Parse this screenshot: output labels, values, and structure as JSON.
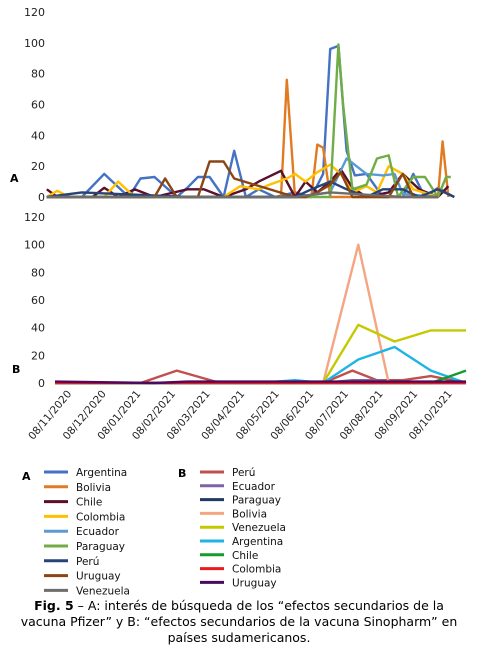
{
  "panels": {
    "a": "A",
    "b": "B"
  },
  "caption": {
    "label": "Fig. 5",
    "text": " – A: interés de búsqueda de los “efectos secundarios de la vacuna Pfizer” y B: “efectos secundarios de la vacuna Sinopharm” en países sudamericanos."
  },
  "chart_data": [
    {
      "type": "line",
      "panel": "A",
      "ylim": [
        0,
        120
      ],
      "yticks": [
        0,
        20,
        40,
        60,
        80,
        100,
        120
      ],
      "x_range": [
        "08/11/2020",
        "08/10/2021"
      ],
      "xlabel": "",
      "ylabel": "",
      "title": "",
      "series": [
        {
          "name": "Argentina",
          "color": "#4472c4",
          "x": [
            "2020-11-01",
            "2020-12-01",
            "2020-12-20",
            "2021-01-10",
            "2021-01-20",
            "2021-02-01",
            "2021-02-20",
            "2021-03-01",
            "2021-03-10",
            "2021-03-20",
            "2021-04-01",
            "2021-04-10",
            "2021-04-20",
            "2021-05-01",
            "2021-05-15",
            "2021-06-01",
            "2021-06-15",
            "2021-06-25",
            "2021-07-01",
            "2021-07-08",
            "2021-07-15",
            "2021-07-22",
            "2021-08-01",
            "2021-08-15",
            "2021-09-01",
            "2021-09-10",
            "2021-09-20",
            "2021-10-01",
            "2021-10-15"
          ],
          "values": [
            0,
            0,
            15,
            0,
            12,
            13,
            0,
            6,
            13,
            13,
            0,
            30,
            0,
            5,
            0,
            3,
            0,
            15,
            96,
            98,
            30,
            14,
            15,
            0,
            0,
            15,
            0,
            6,
            0
          ]
        },
        {
          "name": "Bolivia",
          "color": "#e07b22",
          "x": [
            "2020-11-01",
            "2021-05-20",
            "2021-05-25",
            "2021-06-01",
            "2021-06-10",
            "2021-06-15",
            "2021-06-20",
            "2021-06-25",
            "2021-07-01",
            "2021-10-01",
            "2021-10-05",
            "2021-10-10"
          ],
          "values": [
            0,
            0,
            76,
            0,
            0,
            0,
            34,
            32,
            0,
            0,
            36,
            0
          ]
        },
        {
          "name": "Chile",
          "color": "#5a0f2b",
          "x": [
            "2020-11-01",
            "2020-11-10",
            "2020-12-10",
            "2020-12-20",
            "2021-01-01",
            "2021-01-15",
            "2021-02-01",
            "2021-03-01",
            "2021-03-15",
            "2021-04-01",
            "2021-04-20",
            "2021-05-01",
            "2021-05-20",
            "2021-06-01",
            "2021-06-10",
            "2021-06-20",
            "2021-07-01",
            "2021-07-10",
            "2021-07-20",
            "2021-08-01",
            "2021-08-20",
            "2021-09-01",
            "2021-09-15",
            "2021-10-01",
            "2021-10-10"
          ],
          "values": [
            5,
            0,
            0,
            6,
            0,
            5,
            0,
            5,
            5,
            0,
            5,
            10,
            17,
            0,
            10,
            3,
            10,
            18,
            6,
            0,
            3,
            15,
            5,
            0,
            7
          ]
        },
        {
          "name": "Colombia",
          "color": "#ffc000",
          "x": [
            "2020-11-01",
            "2020-11-10",
            "2020-11-20",
            "2020-12-20",
            "2021-01-01",
            "2021-01-15",
            "2021-02-01",
            "2021-03-01",
            "2021-04-01",
            "2021-04-15",
            "2021-05-01",
            "2021-05-10",
            "2021-05-25",
            "2021-06-01",
            "2021-06-10",
            "2021-06-20",
            "2021-07-01",
            "2021-07-10",
            "2021-07-20",
            "2021-08-01",
            "2021-08-10",
            "2021-08-20",
            "2021-09-01",
            "2021-09-10",
            "2021-10-01"
          ],
          "values": [
            0,
            4,
            0,
            0,
            10,
            0,
            0,
            0,
            0,
            7,
            5,
            8,
            12,
            15,
            10,
            16,
            21,
            15,
            3,
            7,
            3,
            20,
            15,
            5,
            0
          ]
        },
        {
          "name": "Ecuador",
          "color": "#5b9bd5",
          "x": [
            "2020-11-01",
            "2021-03-01",
            "2021-03-10",
            "2021-06-01",
            "2021-07-01",
            "2021-07-15",
            "2021-08-01",
            "2021-08-15",
            "2021-08-25",
            "2021-09-01",
            "2021-10-01"
          ],
          "values": [
            0,
            0,
            0,
            0,
            3,
            25,
            15,
            14,
            15,
            2,
            0
          ]
        },
        {
          "name": "Paraguay",
          "color": "#70ad47",
          "x": [
            "2020-11-01",
            "2021-06-20",
            "2021-07-01",
            "2021-07-08",
            "2021-07-12",
            "2021-07-20",
            "2021-08-01",
            "2021-08-10",
            "2021-08-20",
            "2021-08-28",
            "2021-09-10",
            "2021-09-20",
            "2021-10-01",
            "2021-10-08",
            "2021-10-12"
          ],
          "values": [
            0,
            0,
            0,
            99,
            60,
            5,
            8,
            25,
            27,
            0,
            13,
            13,
            0,
            13,
            13
          ]
        },
        {
          "name": "Perú",
          "color": "#264478",
          "x": [
            "2020-11-01",
            "2020-12-01",
            "2021-03-01",
            "2021-06-01",
            "2021-06-15",
            "2021-07-01",
            "2021-07-15",
            "2021-08-01",
            "2021-08-15",
            "2021-09-01",
            "2021-09-15",
            "2021-10-01",
            "2021-10-15"
          ],
          "values": [
            0,
            3,
            0,
            0,
            5,
            10,
            5,
            0,
            5,
            5,
            0,
            5,
            0
          ]
        },
        {
          "name": "Uruguay",
          "color": "#8b4513",
          "x": [
            "2020-11-01",
            "2021-02-01",
            "2021-02-10",
            "2021-02-20",
            "2021-03-10",
            "2021-03-20",
            "2021-04-01",
            "2021-04-10",
            "2021-06-01",
            "2021-06-10",
            "2021-06-20",
            "2021-07-01",
            "2021-07-10",
            "2021-07-20",
            "2021-08-10",
            "2021-08-20",
            "2021-09-01",
            "2021-09-10",
            "2021-10-01"
          ],
          "values": [
            0,
            0,
            12,
            0,
            0,
            23,
            23,
            12,
            0,
            0,
            3,
            8,
            16,
            0,
            0,
            0,
            15,
            0,
            0
          ]
        },
        {
          "name": "Venezuela",
          "color": "#6d6d6d",
          "x": [
            "2020-11-01",
            "2020-12-01",
            "2021-03-01",
            "2021-06-01",
            "2021-07-01",
            "2021-09-01",
            "2021-10-01"
          ],
          "values": [
            0,
            0,
            0,
            0,
            3,
            0,
            0
          ]
        }
      ]
    },
    {
      "type": "line",
      "panel": "B",
      "ylim": [
        0,
        120
      ],
      "yticks": [
        0,
        20,
        40,
        60,
        80,
        100,
        120
      ],
      "categories": [
        "08/11/2020",
        "08/12/2020",
        "08/01/2021",
        "08/02/2021",
        "08/03/2021",
        "08/04/2021",
        "08/05/2021",
        "08/06/2021",
        "08/07/2021",
        "08/08/2021",
        "08/09/2021",
        "08/10/2021"
      ],
      "x_range": [
        "2020-11-08",
        "2021-10-25"
      ],
      "xlabel": "",
      "ylabel": "",
      "title": "",
      "series": [
        {
          "name": "Perú",
          "color": "#c0504d",
          "x": [
            "2020-11-08",
            "2021-01-20",
            "2021-02-20",
            "2021-03-25",
            "2021-05-01",
            "2021-06-01",
            "2021-06-25",
            "2021-07-20",
            "2021-08-10",
            "2021-09-01",
            "2021-09-25",
            "2021-10-25"
          ],
          "values": [
            0,
            0,
            9,
            1,
            0,
            0,
            0,
            9,
            2,
            2,
            5,
            0
          ]
        },
        {
          "name": "Ecuador",
          "color": "#8064a2",
          "x": [
            "2020-11-08",
            "2021-06-25",
            "2021-07-20",
            "2021-08-10",
            "2021-09-01",
            "2021-10-25"
          ],
          "values": [
            0,
            0,
            2,
            2,
            0,
            0
          ]
        },
        {
          "name": "Paraguay",
          "color": "#1f3864",
          "x": [
            "2020-11-08",
            "2021-10-25"
          ],
          "values": [
            0,
            0
          ]
        },
        {
          "name": "Bolivia",
          "color": "#f4a582",
          "x": [
            "2020-11-08",
            "2021-06-25",
            "2021-07-25",
            "2021-08-20",
            "2021-10-25"
          ],
          "values": [
            0,
            0,
            100,
            0,
            0
          ]
        },
        {
          "name": "Venezuela",
          "color": "#c5c900",
          "x": [
            "2020-11-08",
            "2021-06-25",
            "2021-07-25",
            "2021-08-25",
            "2021-09-25",
            "2021-10-25"
          ],
          "values": [
            0,
            0,
            42,
            30,
            38,
            38
          ]
        },
        {
          "name": "Argentina",
          "color": "#1eb4e6",
          "x": [
            "2020-11-08",
            "2021-05-01",
            "2021-06-01",
            "2021-06-25",
            "2021-07-25",
            "2021-08-25",
            "2021-09-25",
            "2021-10-25"
          ],
          "values": [
            0,
            0,
            2,
            0,
            17,
            26,
            9,
            0
          ]
        },
        {
          "name": "Chile",
          "color": "#169b2f",
          "x": [
            "2020-11-08",
            "2021-09-25",
            "2021-10-25"
          ],
          "values": [
            0,
            0,
            9
          ]
        },
        {
          "name": "Colombia",
          "color": "#e81c1c",
          "x": [
            "2020-11-08",
            "2021-10-25"
          ],
          "values": [
            0,
            0
          ]
        },
        {
          "name": "Uruguay",
          "color": "#4b0a5e",
          "x": [
            "2020-11-08",
            "2021-02-01",
            "2021-03-01",
            "2021-10-25"
          ],
          "values": [
            1,
            0,
            1,
            1
          ]
        }
      ]
    }
  ]
}
